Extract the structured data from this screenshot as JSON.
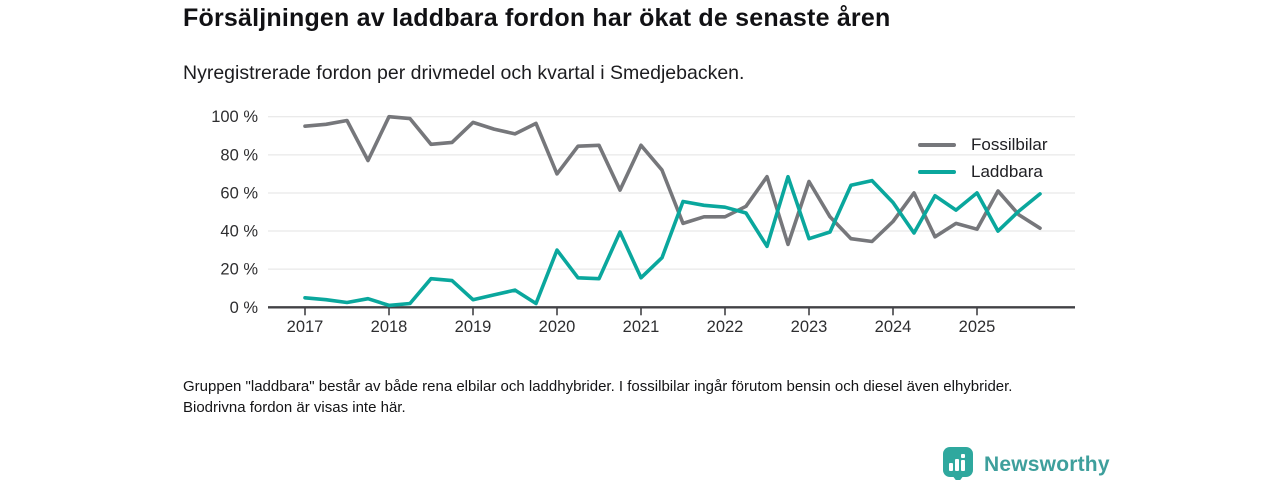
{
  "header": {
    "title": "Försäljningen av laddbara fordon har ökat de senaste åren",
    "subtitle": "Nyregistrerade fordon per drivmedel och kvartal i Smedjebacken."
  },
  "chart_data": {
    "type": "line",
    "title": "Nyregistrerade fordon per drivmedel och kvartal i Smedjebacken",
    "x_unit": "kvartal",
    "x": [
      "2017 Q1",
      "2017 Q2",
      "2017 Q3",
      "2017 Q4",
      "2018 Q1",
      "2018 Q2",
      "2018 Q3",
      "2018 Q4",
      "2019 Q1",
      "2019 Q2",
      "2019 Q3",
      "2019 Q4",
      "2020 Q1",
      "2020 Q2",
      "2020 Q3",
      "2020 Q4",
      "2021 Q1",
      "2021 Q2",
      "2021 Q3",
      "2021 Q4",
      "2022 Q1",
      "2022 Q2",
      "2022 Q3",
      "2022 Q4",
      "2023 Q1",
      "2023 Q2",
      "2023 Q3",
      "2023 Q4",
      "2024 Q1",
      "2024 Q2",
      "2024 Q3",
      "2024 Q4",
      "2025 Q1",
      "2025 Q2",
      "2025 Q3",
      "2025 Q4"
    ],
    "series": [
      {
        "name": "Fossilbilar",
        "color": "#76777b",
        "values": [
          95,
          96,
          98,
          77,
          100,
          99,
          85.5,
          86.5,
          97,
          93.5,
          91,
          96.5,
          70,
          84.5,
          85,
          61.5,
          85,
          72,
          44,
          47.5,
          47.5,
          53,
          68.5,
          33,
          66,
          47.5,
          36,
          34.5,
          45,
          60,
          37,
          44,
          41,
          61,
          48.5,
          41.5
        ]
      },
      {
        "name": "Laddbara",
        "color": "#0aa79d",
        "values": [
          5,
          4,
          2.5,
          4.5,
          1,
          2,
          15,
          14,
          4,
          6.5,
          9,
          2,
          30,
          15.5,
          15,
          39.5,
          15.5,
          26,
          55.5,
          53.5,
          52.5,
          49.5,
          32,
          68.5,
          36,
          39.5,
          64,
          66.5,
          55,
          39,
          58.5,
          51,
          60,
          40,
          50.5,
          59.5
        ]
      }
    ],
    "ylim": [
      0,
      100
    ],
    "ytick_values": [
      100,
      80,
      60,
      40,
      20,
      0
    ],
    "ytick_labels": [
      "100 %",
      "80 %",
      "60 %",
      "40 %",
      "20 %",
      "0 %"
    ],
    "xtick_labels": [
      "2017",
      "2018",
      "2019",
      "2020",
      "2021",
      "2022",
      "2023",
      "2024",
      "2025"
    ],
    "grid": "horizontal",
    "legend_position": "top-right",
    "axis_color": "#424246",
    "gridline_color": "#e3e3e3",
    "tick_text_color": "#2e2e30"
  },
  "footnote": {
    "text": "Gruppen \"laddbara\" består av både rena elbilar och laddhybrider. I fossilbilar ingår förutom bensin och diesel även elhybrider. Biodrivna fordon är visas inte här."
  },
  "logo": {
    "text": "Newsworthy",
    "icon": "bar-chart-badge-icon",
    "color": "#3e9f9c",
    "badge_color": "#2fa89e"
  }
}
